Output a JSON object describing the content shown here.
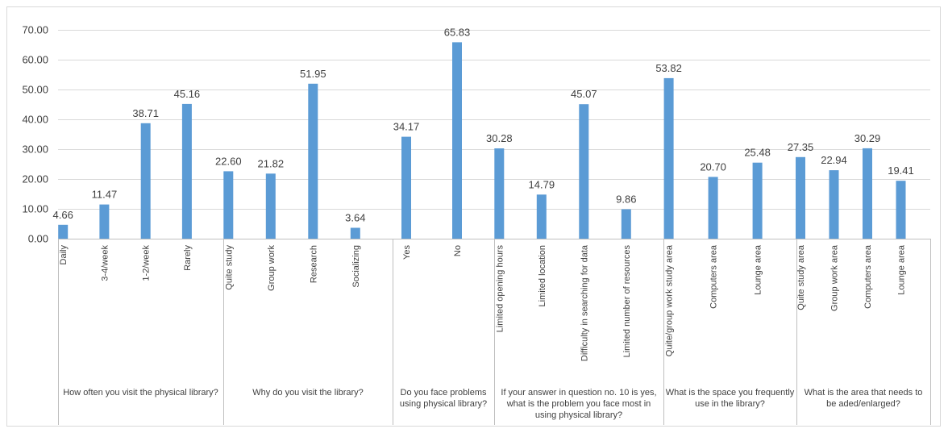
{
  "chart_data": {
    "type": "bar",
    "title": "",
    "xlabel": "",
    "ylabel": "",
    "ylim": [
      0,
      70
    ],
    "yticks": [
      "0.00",
      "10.00",
      "20.00",
      "30.00",
      "40.00",
      "50.00",
      "60.00",
      "70.00"
    ],
    "grid": true,
    "legend": "none",
    "bar_color": "#5b9bd5",
    "groups": [
      {
        "label": "How often you visit the physical library?",
        "categories": [
          "Daily",
          "3-4/week",
          "1-2/week",
          "Rarely"
        ],
        "values": [
          4.66,
          11.47,
          38.71,
          45.16
        ],
        "value_labels": [
          "4.66",
          "11.47",
          "38.71",
          "45.16"
        ]
      },
      {
        "label": "Why do you visit the library?",
        "categories": [
          "Quite study",
          "Group work",
          "Research",
          "Socializing"
        ],
        "values": [
          22.6,
          21.82,
          51.95,
          3.64
        ],
        "value_labels": [
          "22.60",
          "21.82",
          "51.95",
          "3.64"
        ]
      },
      {
        "label": "Do you face problems using physical library?",
        "categories": [
          "Yes",
          "No"
        ],
        "values": [
          34.17,
          65.83
        ],
        "value_labels": [
          "34.17",
          "65.83"
        ]
      },
      {
        "label": "If your answer in question no. 10 is yes, what is the problem you face most in using physical library?",
        "categories": [
          "Limited opening hours",
          "Limited location",
          "Difficulty in searching for data",
          "Limited number of resources"
        ],
        "values": [
          30.28,
          14.79,
          45.07,
          9.86
        ],
        "value_labels": [
          "30.28",
          "14.79",
          "45.07",
          "9.86"
        ]
      },
      {
        "label": "What is the space you frequently use in the library?",
        "categories": [
          "Quite/group work study area",
          "Computers area",
          "Lounge area"
        ],
        "values": [
          53.82,
          20.7,
          25.48
        ],
        "value_labels": [
          "53.82",
          "20.70",
          "25.48"
        ]
      },
      {
        "label": "What is the area that needs to be aded/enlarged?",
        "categories": [
          "Quite study area",
          "Group work area",
          "Computers area",
          "Lounge area"
        ],
        "values": [
          27.35,
          22.94,
          30.29,
          19.41
        ],
        "value_labels": [
          "27.35",
          "22.94",
          "30.29",
          "19.41"
        ]
      }
    ]
  }
}
